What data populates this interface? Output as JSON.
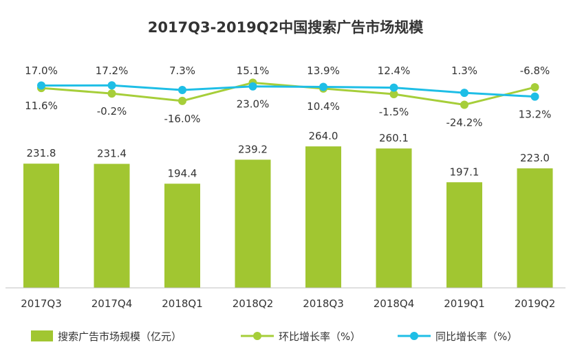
{
  "chart_data": {
    "type": "bar+line",
    "title": "2017Q3-2019Q2中国搜索广告市场规模",
    "categories": [
      "2017Q3",
      "2017Q4",
      "2018Q1",
      "2018Q2",
      "2018Q3",
      "2018Q4",
      "2019Q1",
      "2019Q2"
    ],
    "series": [
      {
        "name": "搜索广告市场规模（亿元）",
        "kind": "bar",
        "values": [
          231.8,
          231.4,
          194.4,
          239.2,
          264.0,
          260.1,
          197.1,
          223.0
        ],
        "labels": [
          "231.8",
          "231.4",
          "194.4",
          "239.2",
          "264.0",
          "260.1",
          "197.1",
          "223.0"
        ]
      },
      {
        "name": "环比增长率（%）",
        "kind": "line",
        "values": [
          11.6,
          -0.2,
          -16.0,
          23.0,
          10.4,
          -1.5,
          -24.2,
          13.2
        ],
        "labels": [
          "11.6%",
          "-0.2%",
          "-16.0%",
          "23.0%",
          "10.4%",
          "-1.5%",
          "-24.2%",
          "13.2%"
        ]
      },
      {
        "name": "同比增长率（%）",
        "kind": "line",
        "values": [
          17.0,
          17.2,
          7.3,
          15.1,
          13.9,
          12.4,
          1.3,
          -6.8
        ],
        "labels": [
          "17.0%",
          "17.2%",
          "7.3%",
          "15.1%",
          "13.9%",
          "12.4%",
          "1.3%",
          "-6.8%"
        ]
      }
    ],
    "legend_position": "bottom",
    "grid": false
  },
  "colors": {
    "bar": "#a1c631",
    "qoq": "#a6ce39",
    "yoy": "#1ebee6",
    "axis": "#bfbfbf",
    "text": "#333333"
  }
}
